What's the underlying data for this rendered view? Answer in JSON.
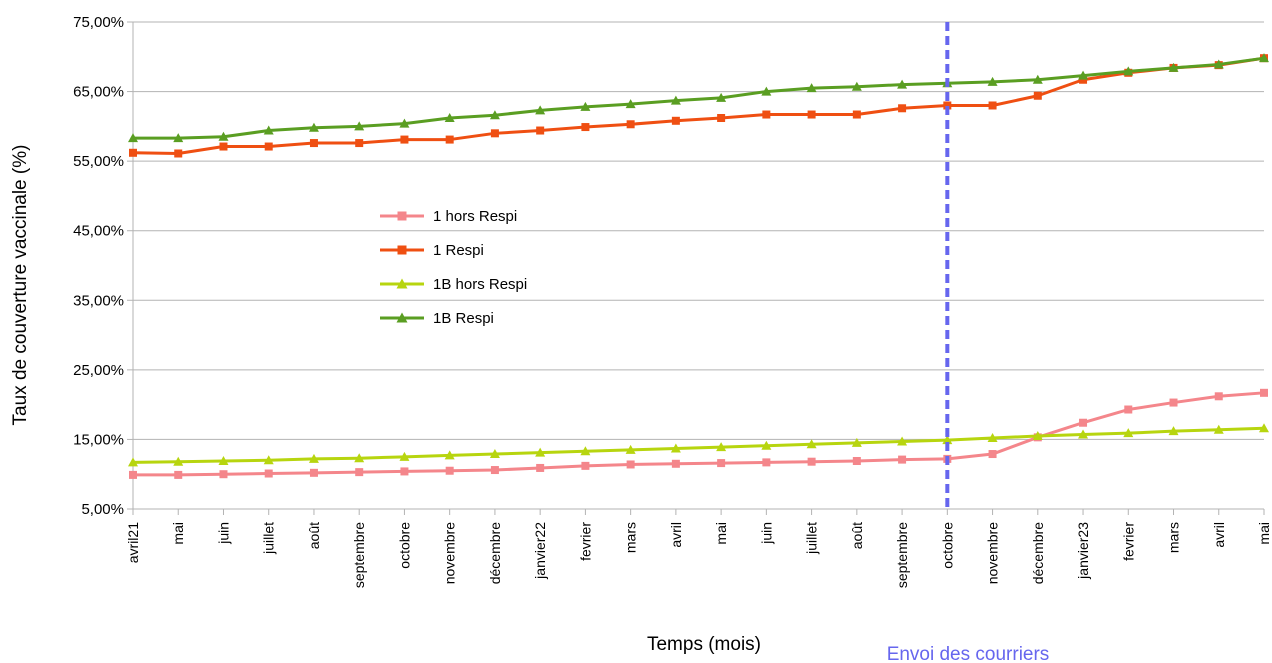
{
  "chart_data": {
    "type": "line",
    "xlabel": "Temps (mois)",
    "ylabel": "Taux de couverture vaccinale (%)",
    "ylim": [
      5,
      75
    ],
    "yticks": [
      "75,00%",
      "65,00%",
      "55,00%",
      "45,00%",
      "35,00%",
      "25,00%",
      "15,00%",
      "5,00%"
    ],
    "ytick_values": [
      75,
      65,
      55,
      45,
      35,
      25,
      15,
      5
    ],
    "grid": "horizontal",
    "legend_position": "center-left",
    "categories": [
      "avril21",
      "mai",
      "juin",
      "juillet",
      "août",
      "septembre",
      "octobre",
      "novembre",
      "décembre",
      "janvier22",
      "fevrier",
      "mars",
      "avril",
      "mai",
      "juin",
      "juillet",
      "août",
      "septembre",
      "octobre",
      "novembre",
      "décembre",
      "janvier23",
      "fevrier",
      "mars",
      "avril",
      "mai"
    ],
    "series": [
      {
        "name": "1 hors Respi",
        "color": "#f4868b",
        "marker": "square",
        "values": [
          9.9,
          9.9,
          10.0,
          10.1,
          10.2,
          10.3,
          10.4,
          10.5,
          10.6,
          10.9,
          11.2,
          11.4,
          11.5,
          11.6,
          11.7,
          11.8,
          11.9,
          12.1,
          12.2,
          12.9,
          15.3,
          17.4,
          19.3,
          20.3,
          21.2,
          21.7
        ]
      },
      {
        "name": "1 Respi",
        "color": "#ef4f12",
        "marker": "square",
        "values": [
          56.2,
          56.1,
          57.1,
          57.1,
          57.6,
          57.6,
          58.1,
          58.1,
          59.0,
          59.4,
          59.9,
          60.3,
          60.8,
          61.2,
          61.7,
          61.7,
          61.7,
          62.6,
          63.0,
          63.0,
          64.4,
          66.7,
          67.7,
          68.4,
          68.8,
          69.8
        ]
      },
      {
        "name": "1B hors Respi",
        "color": "#b7d50f",
        "marker": "triangle",
        "values": [
          11.7,
          11.8,
          11.9,
          12.0,
          12.2,
          12.3,
          12.5,
          12.7,
          12.9,
          13.1,
          13.3,
          13.5,
          13.7,
          13.9,
          14.1,
          14.3,
          14.5,
          14.7,
          14.9,
          15.2,
          15.5,
          15.7,
          15.9,
          16.2,
          16.4,
          16.6
        ]
      },
      {
        "name": "1B Respi",
        "color": "#5a9e22",
        "marker": "triangle",
        "values": [
          58.3,
          58.3,
          58.5,
          59.4,
          59.8,
          60.0,
          60.4,
          61.2,
          61.6,
          62.3,
          62.8,
          63.2,
          63.7,
          64.1,
          65.0,
          65.5,
          65.7,
          66.0,
          66.2,
          66.4,
          66.7,
          67.3,
          67.9,
          68.4,
          68.9,
          69.8
        ]
      }
    ],
    "annotation": {
      "text": "Envoi des courriers",
      "at_category_index": 18,
      "color": "#6666ee"
    }
  }
}
